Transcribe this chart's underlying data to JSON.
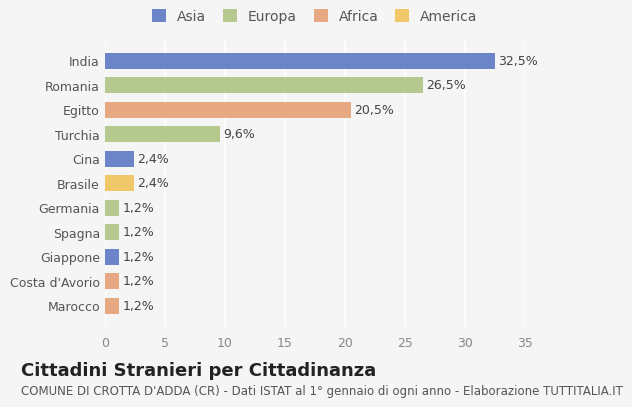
{
  "categories": [
    "India",
    "Romania",
    "Egitto",
    "Turchia",
    "Cina",
    "Brasile",
    "Germania",
    "Spagna",
    "Giappone",
    "Costa d'Avorio",
    "Marocco"
  ],
  "values": [
    32.5,
    26.5,
    20.5,
    9.6,
    2.4,
    2.4,
    1.2,
    1.2,
    1.2,
    1.2,
    1.2
  ],
  "labels": [
    "32,5%",
    "26,5%",
    "20,5%",
    "9,6%",
    "2,4%",
    "2,4%",
    "1,2%",
    "1,2%",
    "1,2%",
    "1,2%",
    "1,2%"
  ],
  "colors": [
    "#6b85c8",
    "#b5c98e",
    "#e8a882",
    "#b5c98e",
    "#6b85c8",
    "#f0c86a",
    "#b5c98e",
    "#b5c98e",
    "#6b85c8",
    "#e8a882",
    "#e8a882"
  ],
  "legend_labels": [
    "Asia",
    "Europa",
    "Africa",
    "America"
  ],
  "legend_colors": [
    "#6b85c8",
    "#b5c98e",
    "#e8a882",
    "#f0c86a"
  ],
  "title": "Cittadini Stranieri per Cittadinanza",
  "subtitle": "COMUNE DI CROTTA D'ADDA (CR) - Dati ISTAT al 1° gennaio di ogni anno - Elaborazione TUTTITALIA.IT",
  "xlim": [
    0,
    35
  ],
  "xticks": [
    0,
    5,
    10,
    15,
    20,
    25,
    30,
    35
  ],
  "background_color": "#f5f5f5",
  "grid_color": "#ffffff",
  "bar_height": 0.65,
  "title_fontsize": 13,
  "subtitle_fontsize": 8.5,
  "label_fontsize": 9,
  "tick_fontsize": 9,
  "legend_fontsize": 10
}
